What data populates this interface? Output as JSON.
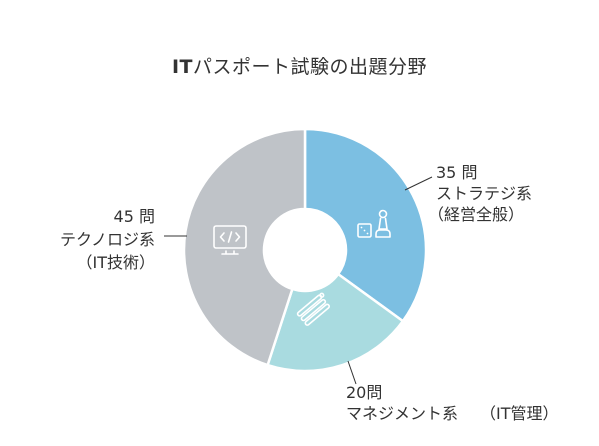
{
  "chart_data": {
    "type": "pie",
    "title": "ITパスポート試験の出題分野",
    "title_lead": "IT",
    "title_rest": "パスポート試験の出題分野",
    "donut": true,
    "slices": [
      {
        "count_label": "35 問",
        "category": "ストラテジ系",
        "detail": "（経営全般）",
        "value": 35,
        "color": "#7cbfe2",
        "icon": "game-pieces-icon"
      },
      {
        "count_label": "20問",
        "category": "マネジメント系",
        "detail": "（IT管理）",
        "value": 20,
        "color": "#a9dbe0",
        "icon": "tools-icon"
      },
      {
        "count_label": "45 問",
        "category": "テクノロジ系",
        "detail": "（IT技術）",
        "value": 45,
        "color": "#bfc3c8",
        "icon": "code-monitor-icon"
      }
    ]
  }
}
